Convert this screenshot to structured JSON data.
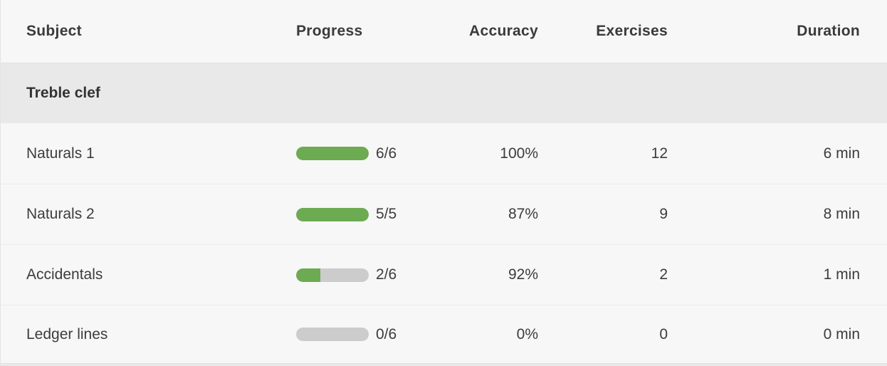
{
  "table": {
    "columns": [
      {
        "key": "subject",
        "label": "Subject"
      },
      {
        "key": "progress",
        "label": "Progress"
      },
      {
        "key": "accuracy",
        "label": "Accuracy"
      },
      {
        "key": "exercises",
        "label": "Exercises"
      },
      {
        "key": "duration",
        "label": "Duration"
      }
    ],
    "section": {
      "label": "Treble clef"
    },
    "rows": [
      {
        "subject": "Naturals 1",
        "progress_completed": 6,
        "progress_total": 6,
        "progress_label": "6/6",
        "accuracy": "100%",
        "exercises": "12",
        "duration": "6 min"
      },
      {
        "subject": "Naturals 2",
        "progress_completed": 5,
        "progress_total": 5,
        "progress_label": "5/5",
        "accuracy": "87%",
        "exercises": "9",
        "duration": "8 min"
      },
      {
        "subject": "Accidentals",
        "progress_completed": 2,
        "progress_total": 6,
        "progress_label": "2/6",
        "accuracy": "92%",
        "exercises": "2",
        "duration": "1 min"
      },
      {
        "subject": "Ledger lines",
        "progress_completed": 0,
        "progress_total": 6,
        "progress_label": "0/6",
        "accuracy": "0%",
        "exercises": "0",
        "duration": "0 min"
      }
    ],
    "colors": {
      "progress_fill": "#6cab51",
      "progress_track": "#cccccc",
      "section_bg": "#e9e9e9",
      "row_bg": "#f7f7f7",
      "text": "#3c3c3c"
    }
  }
}
